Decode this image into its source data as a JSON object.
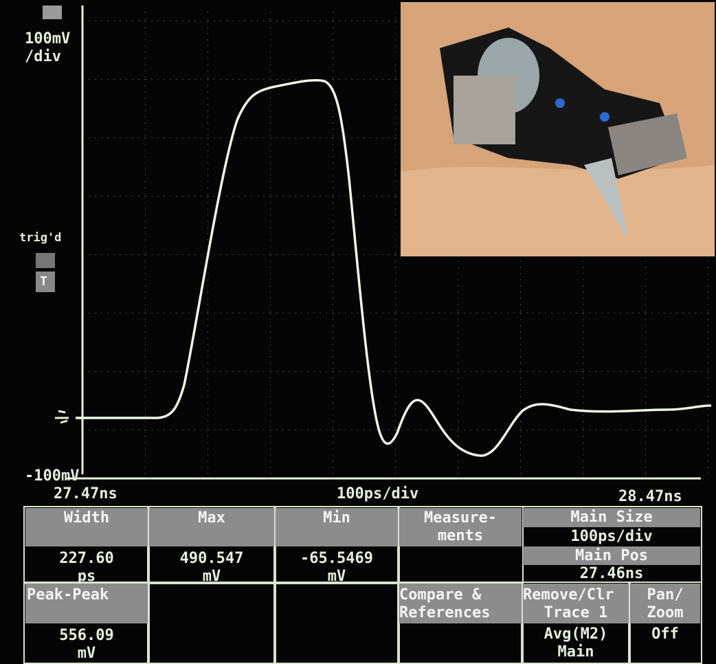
{
  "screen": {
    "scale": "100mV",
    "scale_unit": "/div",
    "trigger_status": "trig'd",
    "trigger_label": "T",
    "bottom_label": "-100mV"
  },
  "time_axis": {
    "start": "27.47ns",
    "scale": "100ps/div",
    "end": "28.47ns"
  },
  "measurements": [
    {
      "label": "Width",
      "value": "227.60",
      "unit": "ps"
    },
    {
      "label": "Max",
      "value": "490.547",
      "unit": "mV"
    },
    {
      "label": "Min",
      "value": "-65.5469",
      "unit": "mV"
    },
    {
      "label": "Peak-Peak",
      "value": "556.09",
      "unit": "mV"
    }
  ],
  "menu": {
    "measurements": [
      "Measure-",
      "ments"
    ],
    "main_size": {
      "label": "Main Size",
      "value": "100ps/div"
    },
    "main_pos": {
      "label": "Main Pos",
      "value": "27.46ns"
    },
    "compare": [
      "Compare &",
      "References"
    ],
    "remove": {
      "label": [
        "Remove/Clr",
        "Trace 1"
      ],
      "value": [
        "Avg(M2)",
        "Main"
      ]
    },
    "pan_zoom": {
      "label": [
        "Pan/",
        "Zoom"
      ],
      "value": "Off"
    }
  }
}
